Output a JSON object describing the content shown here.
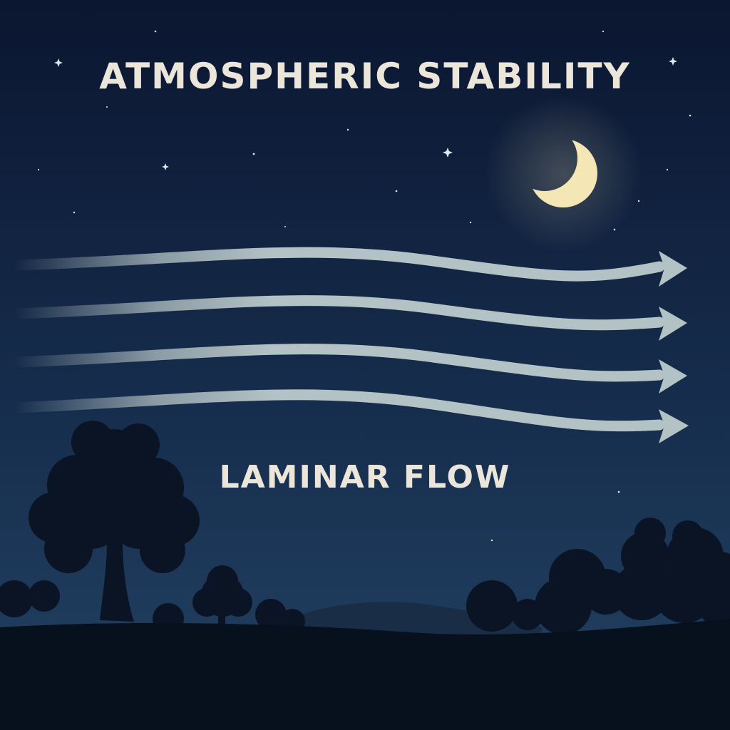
{
  "title": "ATMOSPHERIC STABILITY",
  "subtitle": "LAMINAR FLOW",
  "colors": {
    "sky_top": "#0b1630",
    "sky_bottom": "#1f3c5e",
    "arrow": "#b3c2c4",
    "moon": "#f4e6b5",
    "text": "#ece6da",
    "tree_silhouette": "#0a1424",
    "ground": "#07101d"
  },
  "icons": {
    "moon": "crescent-moon-icon",
    "stars": "star-icon",
    "arrows": "arrow-right-icon",
    "trees": "tree-silhouette-icon"
  },
  "arrows": {
    "count": 4
  }
}
